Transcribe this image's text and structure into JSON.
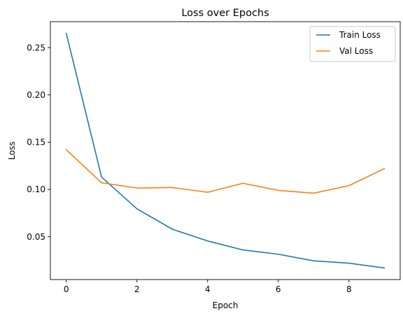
{
  "chart_data": {
    "type": "line",
    "title": "Loss over Epochs",
    "xlabel": "Epoch",
    "ylabel": "Loss",
    "x": [
      0,
      1,
      2,
      3,
      4,
      5,
      6,
      7,
      8,
      9
    ],
    "xlim": [
      -0.45,
      9.45
    ],
    "ylim": [
      0.0047,
      0.2774
    ],
    "xticks": [
      0,
      2,
      4,
      6,
      8
    ],
    "yticks": [
      0.05,
      0.1,
      0.15,
      0.2,
      0.25
    ],
    "xtick_labels": [
      "0",
      "2",
      "4",
      "6",
      "8"
    ],
    "ytick_labels": [
      "0.05",
      "0.10",
      "0.15",
      "0.20",
      "0.25"
    ],
    "grid": false,
    "legend_position": "top-right",
    "series": [
      {
        "name": "Train Loss",
        "color": "#1f77b4",
        "values": [
          0.265,
          0.113,
          0.0795,
          0.058,
          0.0455,
          0.036,
          0.0315,
          0.0245,
          0.022,
          0.017
        ]
      },
      {
        "name": "Val Loss",
        "color": "#ff7f0e",
        "values": [
          0.142,
          0.107,
          0.1015,
          0.102,
          0.097,
          0.1065,
          0.099,
          0.096,
          0.104,
          0.122
        ]
      }
    ]
  }
}
